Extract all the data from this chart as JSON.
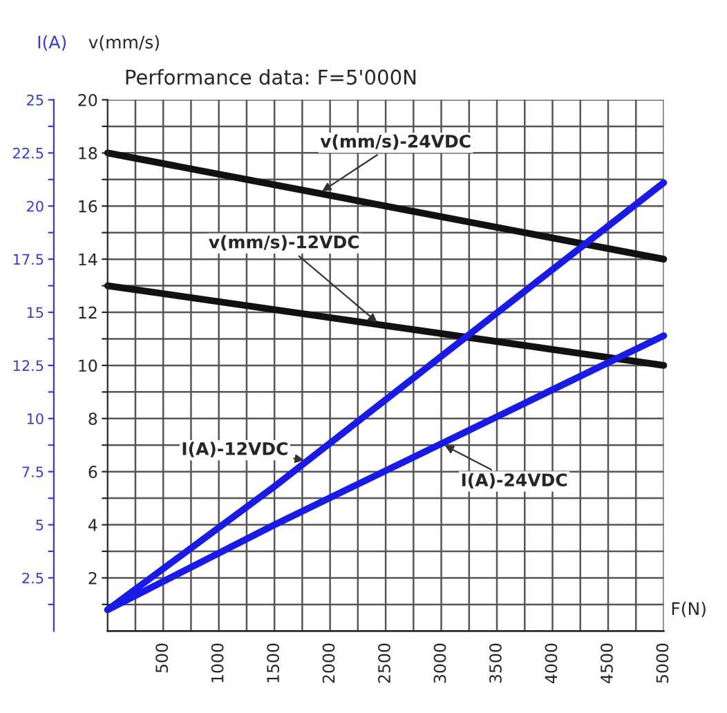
{
  "chart_data": {
    "type": "line",
    "title": "Performance data: F=5'000N",
    "xlabel": "F(N)",
    "ylabel": "v(mm/s)",
    "y2label": "I(A)",
    "series": [
      {
        "name": "v(mm/s)-24VDC",
        "color": "#111111",
        "x": [
          0,
          5000
        ],
        "values": [
          18.0,
          14.0
        ]
      },
      {
        "name": "v(mm/s)-12VDC",
        "color": "#111111",
        "x": [
          0,
          5000
        ],
        "values": [
          13.0,
          10.0
        ]
      },
      {
        "name": "I(A)-12VDC",
        "color": "#1a1ae6",
        "axis": "y2",
        "x": [
          0,
          1500,
          5000
        ],
        "values": [
          1.0,
          6.8,
          21.1
        ]
      },
      {
        "name": "I(A)-24VDC",
        "color": "#1a1ae6",
        "axis": "y2",
        "x": [
          0,
          1500,
          5000
        ],
        "values": [
          1.0,
          5.0,
          13.9
        ]
      }
    ],
    "xlim": [
      0,
      5000
    ],
    "xticks": [
      {
        "value": 250,
        "label": null
      },
      500,
      {
        "value": 750,
        "label": null
      },
      1000,
      {
        "value": 1250,
        "label": null
      },
      1500,
      {
        "value": 1750,
        "label": null
      },
      2000,
      {
        "value": 2250,
        "label": null
      },
      2500,
      {
        "value": 2750,
        "label": null
      },
      3000,
      {
        "value": 3250,
        "label": null
      },
      3500,
      {
        "value": 3750,
        "label": null
      },
      4000,
      {
        "value": 4250,
        "label": null
      },
      4500,
      {
        "value": 4750,
        "label": null
      },
      5000
    ],
    "ylim": [
      0,
      20
    ],
    "yticks": [
      {
        "value": 1,
        "label": null
      },
      2,
      {
        "value": 3,
        "label": null
      },
      4,
      {
        "value": 5,
        "label": null
      },
      6,
      {
        "value": 7,
        "label": null
      },
      8,
      {
        "value": 9,
        "label": null
      },
      10,
      {
        "value": 11,
        "label": null
      },
      12,
      {
        "value": 13,
        "label": null
      },
      14,
      {
        "value": 15,
        "label": null
      },
      16,
      {
        "value": 17,
        "label": null
      },
      18,
      {
        "value": 19,
        "label": null
      },
      20
    ],
    "y2lim": [
      0,
      25
    ],
    "y2ticks": [
      {
        "value": 1.25,
        "label": null
      },
      2.5,
      {
        "value": 3.75,
        "label": null
      },
      5,
      {
        "value": 6.25,
        "label": null
      },
      7.5,
      {
        "value": 8.75,
        "label": null
      },
      10,
      {
        "value": 11.25,
        "label": null
      },
      12.5,
      {
        "value": 13.75,
        "label": null
      },
      15,
      {
        "value": 16.25,
        "label": null
      },
      17.5,
      {
        "value": 18.75,
        "label": null
      },
      20,
      {
        "value": 21.25,
        "label": null
      },
      22.5,
      {
        "value": 23.75,
        "label": null
      },
      25
    ],
    "grid": true,
    "legend": false,
    "marker": "none",
    "line_style": "solid"
  }
}
